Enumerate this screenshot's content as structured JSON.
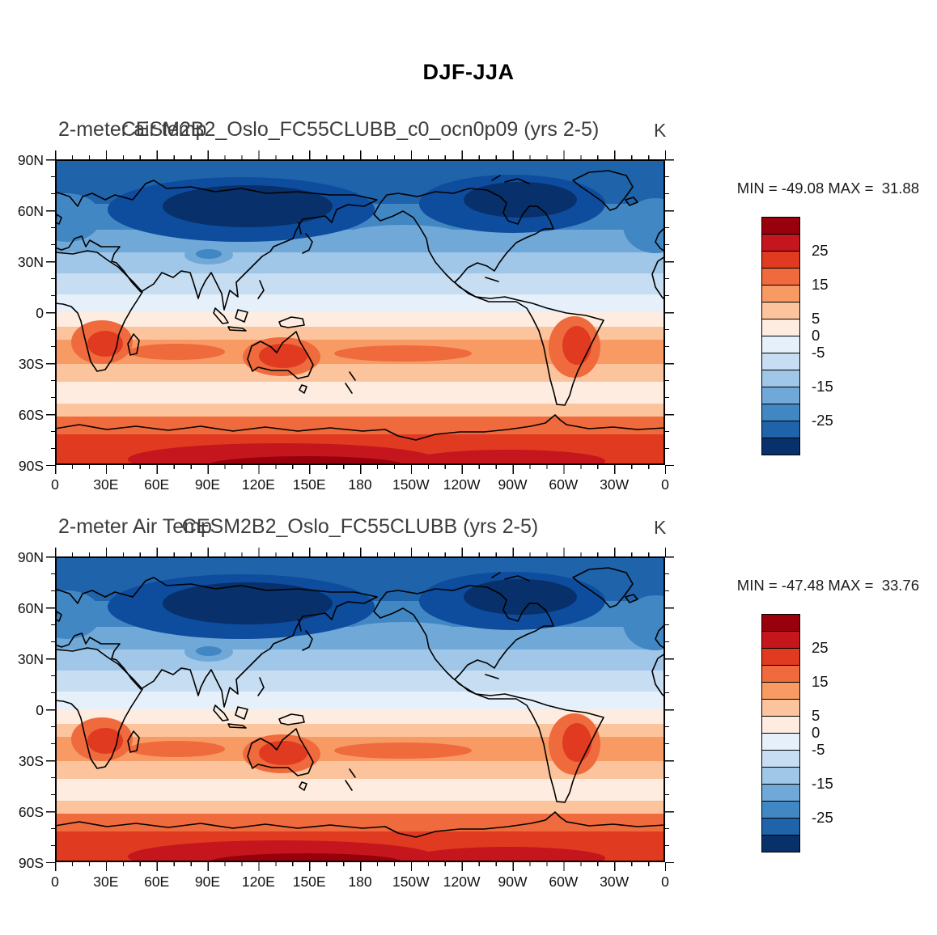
{
  "page_title": "DJF-JJA",
  "panels": [
    {
      "left_title": "2-meter air temp",
      "center_title": "CESM2B2_Oslo_FC55CLUBB_c0_ocn0p09 (yrs 2-5)",
      "units": "K",
      "stats": "MIN = -49.08 MAX =  31.88"
    },
    {
      "left_title": "2-meter Air Temp",
      "center_title": "CESM2B2_Oslo_FC55CLUBB (yrs 2-5)",
      "units": "K",
      "stats": "MIN = -47.48 MAX =  33.76"
    }
  ],
  "axes": {
    "lat_ticks": [
      "90N",
      "60N",
      "30N",
      "0",
      "30S",
      "60S",
      "90S"
    ],
    "lon_ticks": [
      "0",
      "30E",
      "60E",
      "90E",
      "120E",
      "150E",
      "180",
      "150W",
      "120W",
      "90W",
      "60W",
      "30W",
      "0"
    ]
  },
  "colorbar": {
    "colors": [
      "#99000d",
      "#c4161c",
      "#e03a20",
      "#ef6a3c",
      "#f79a64",
      "#fbc49c",
      "#fdecdf",
      "#e6f0fa",
      "#c7ddf1",
      "#a0c6e8",
      "#70a8d7",
      "#4187c4",
      "#1f63ab",
      "#08306b"
    ],
    "labels": [
      {
        "text": "25",
        "edge": 2
      },
      {
        "text": "15",
        "edge": 4
      },
      {
        "text": "5",
        "edge": 6
      },
      {
        "text": "0",
        "edge": 7
      },
      {
        "text": "-5",
        "edge": 8
      },
      {
        "text": "-15",
        "edge": 10
      },
      {
        "text": "-25",
        "edge": 12
      }
    ]
  },
  "chart_data": [
    {
      "type": "heatmap",
      "panel": 1,
      "title": "2-meter air temp",
      "experiment": "CESM2B2_Oslo_FC55CLUBB_c0_ocn0p09",
      "years": "yrs 2-5",
      "season_difference": "DJF-JJA",
      "units": "K",
      "min": -49.08,
      "max": 31.88,
      "lon_domain": [
        0,
        360
      ],
      "lat_domain": [
        -90,
        90
      ],
      "contour_levels": [
        -30,
        -25,
        -20,
        -15,
        -10,
        -5,
        0,
        5,
        10,
        15,
        20,
        25,
        30
      ],
      "zonal_mean_estimate": {
        "lat": [
          90,
          75,
          60,
          45,
          30,
          15,
          0,
          -15,
          -30,
          -45,
          -60,
          -75,
          -90
        ],
        "value_K": [
          -28,
          -30,
          -22,
          -12,
          -7,
          -2,
          1,
          4,
          9,
          3,
          7,
          20,
          25
        ]
      },
      "pattern_notes": "Negative (blue) over Northern Hemisphere with minima over Siberia and northern Canada; positive (red) over Southern Hemisphere with maxima over Antarctica, Australia, southern Africa and South America"
    },
    {
      "type": "heatmap",
      "panel": 2,
      "title": "2-meter Air Temp",
      "experiment": "CESM2B2_Oslo_FC55CLUBB",
      "years": "yrs 2-5",
      "season_difference": "DJF-JJA",
      "units": "K",
      "min": -47.48,
      "max": 33.76,
      "lon_domain": [
        0,
        360
      ],
      "lat_domain": [
        -90,
        90
      ],
      "contour_levels": [
        -30,
        -25,
        -20,
        -15,
        -10,
        -5,
        0,
        5,
        10,
        15,
        20,
        25,
        30
      ],
      "zonal_mean_estimate": {
        "lat": [
          90,
          75,
          60,
          45,
          30,
          15,
          0,
          -15,
          -30,
          -45,
          -60,
          -75,
          -90
        ],
        "value_K": [
          -27,
          -29,
          -21,
          -12,
          -7,
          -2,
          1,
          4,
          9,
          3,
          7,
          21,
          26
        ]
      },
      "pattern_notes": "Same spatial pattern as panel 1 with slightly weaker NH minimum and stronger SH maximum"
    }
  ]
}
